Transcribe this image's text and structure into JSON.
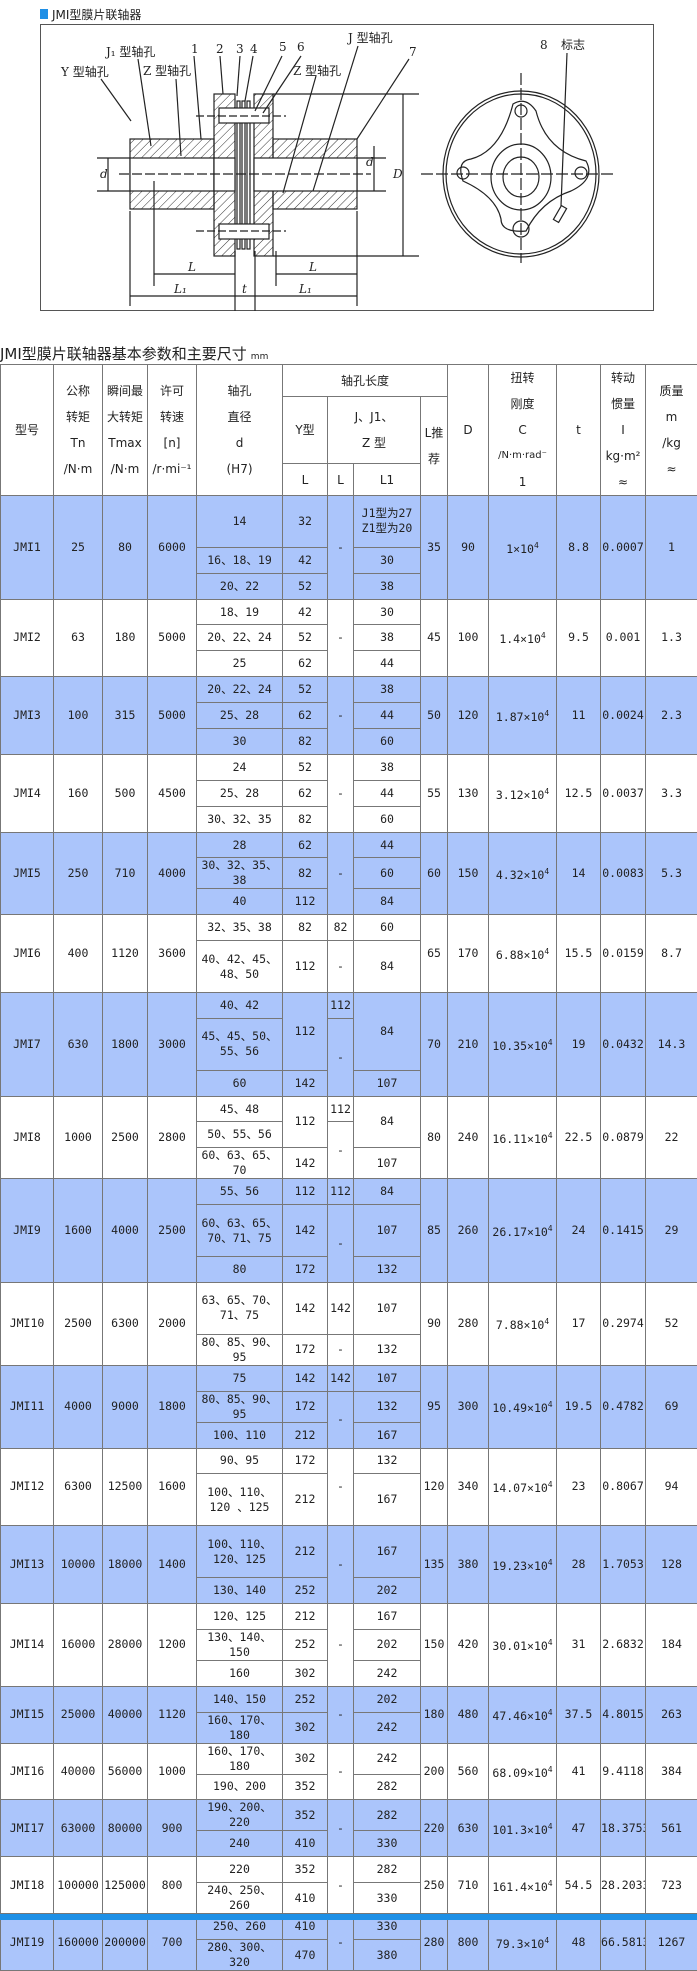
{
  "section_title": "JMI型膜片联轴器",
  "diagram": {
    "labels": {
      "y_bore": "Y 型轴孔",
      "j1_bore": "J₁ 型轴孔",
      "z_bore_left": "Z 型轴孔",
      "j_bore": "J 型轴孔",
      "z_bore_right": "Z 型轴孔",
      "n1": "1",
      "n2": "2",
      "n3": "3",
      "n4": "4",
      "n5": "5",
      "n6": "6",
      "n7": "7",
      "n8": "8",
      "mark": "标志",
      "dim_d_left": "d",
      "dim_d_right": "d",
      "dim_D": "D",
      "dim_L_left": "L",
      "dim_L_right": "L",
      "dim_L1_left": "L₁",
      "dim_L1_right": "L₁",
      "dim_t": "t"
    }
  },
  "table_title": "JMI型膜片联轴器基本参数和主要尺寸",
  "table_unit": "mm",
  "headers": {
    "model": "型号",
    "tn": [
      "公称",
      "转矩",
      "Tn",
      "/N·m"
    ],
    "tmax": [
      "瞬间最",
      "大转矩",
      "Tmax",
      "/N·m"
    ],
    "speed": [
      "许可",
      "转速",
      "[n]",
      "/r·mi⁻¹"
    ],
    "bore": [
      "轴孔",
      "直径",
      "d",
      "(H7)"
    ],
    "bore_length": "轴孔长度",
    "y_type": "Y型",
    "jz_type": [
      "J、J1、",
      "Z 型"
    ],
    "l_rec": [
      "L推",
      "荐"
    ],
    "y_L": "L",
    "jz_L": "L",
    "jz_L1": "L1",
    "D": "D",
    "stiffness": [
      "扭转",
      "刚度",
      "C",
      "/N·m·rad⁻",
      "1"
    ],
    "t": "t",
    "inertia": [
      "转动",
      "惯量",
      "I",
      "kg·m²",
      "≈"
    ],
    "mass": [
      "质量",
      "m",
      "/kg",
      "≈"
    ]
  },
  "rows": [
    {
      "model": "JMI1",
      "tn": "25",
      "tmax": "80",
      "speed": "6000",
      "l_rec": "35",
      "D": "90",
      "C": "1×10",
      "t": "8.8",
      "I": "0.0007",
      "m": "1",
      "d": [
        "14",
        "16、18、19",
        "20、22"
      ],
      "y": [
        "32",
        "42",
        "52"
      ],
      "jl": [
        "-"
      ],
      "l1": [
        "J1型为27 Z1型为20",
        "30",
        "38"
      ]
    },
    {
      "model": "JMI2",
      "tn": "63",
      "tmax": "180",
      "speed": "5000",
      "l_rec": "45",
      "D": "100",
      "C": "1.4×10",
      "t": "9.5",
      "I": "0.001",
      "m": "1.3",
      "d": [
        "18、19",
        "20、22、24",
        "25"
      ],
      "y": [
        "42",
        "52",
        "62"
      ],
      "jl": [
        "-"
      ],
      "l1": [
        "30",
        "38",
        "44"
      ]
    },
    {
      "model": "JMI3",
      "tn": "100",
      "tmax": "315",
      "speed": "5000",
      "l_rec": "50",
      "D": "120",
      "C": "1.87×10",
      "t": "11",
      "I": "0.0024",
      "m": "2.3",
      "d": [
        "20、22、24",
        "25、28",
        "30"
      ],
      "y": [
        "52",
        "62",
        "82"
      ],
      "jl": [
        "-"
      ],
      "l1": [
        "38",
        "44",
        "60"
      ]
    },
    {
      "model": "JMI4",
      "tn": "160",
      "tmax": "500",
      "speed": "4500",
      "l_rec": "55",
      "D": "130",
      "C": "3.12×10",
      "t": "12.5",
      "I": "0.0037",
      "m": "3.3",
      "d": [
        "24",
        "25、28",
        "30、32、35"
      ],
      "y": [
        "52",
        "62",
        "82"
      ],
      "jl": [
        "-"
      ],
      "l1": [
        "38",
        "44",
        "60"
      ]
    },
    {
      "model": "JMI5",
      "tn": "250",
      "tmax": "710",
      "speed": "4000",
      "l_rec": "60",
      "D": "150",
      "C": "4.32×10",
      "t": "14",
      "I": "0.0083",
      "m": "5.3",
      "d": [
        "28",
        "30、32、35、38",
        "40"
      ],
      "y": [
        "62",
        "82",
        "112"
      ],
      "jl": [
        "-"
      ],
      "l1": [
        "44",
        "60",
        "84"
      ]
    },
    {
      "model": "JMI6",
      "tn": "400",
      "tmax": "1120",
      "speed": "3600",
      "l_rec": "65",
      "D": "170",
      "C": "6.88×10",
      "t": "15.5",
      "I": "0.0159",
      "m": "8.7",
      "d": [
        "32、35、38",
        "40、42、45、48、50"
      ],
      "y": [
        "82",
        "112"
      ],
      "jl": [
        "82",
        "-"
      ],
      "l1": [
        "60",
        "84"
      ]
    },
    {
      "model": "JMI7",
      "tn": "630",
      "tmax": "1800",
      "speed": "3000",
      "l_rec": "70",
      "D": "210",
      "C": "10.35×10",
      "t": "19",
      "I": "0.0432",
      "m": "14.3",
      "d": [
        "40、42",
        "45、45、50、55、56",
        "60"
      ],
      "y": [
        "112",
        "142"
      ],
      "jl": [
        "112",
        "-"
      ],
      "l1": [
        "84",
        "107"
      ]
    },
    {
      "model": "JMI8",
      "tn": "1000",
      "tmax": "2500",
      "speed": "2800",
      "l_rec": "80",
      "D": "240",
      "C": "16.11×10",
      "t": "22.5",
      "I": "0.0879",
      "m": "22",
      "d": [
        "45、48",
        "50、55、56",
        "60、63、65、70"
      ],
      "y": [
        "112",
        "142"
      ],
      "jl": [
        "112",
        "-"
      ],
      "l1": [
        "84",
        "107"
      ]
    },
    {
      "model": "JMI9",
      "tn": "1600",
      "tmax": "4000",
      "speed": "2500",
      "l_rec": "85",
      "D": "260",
      "C": "26.17×10",
      "t": "24",
      "I": "0.1415",
      "m": "29",
      "d": [
        "55、56",
        "60、63、65、70、71、75",
        "80"
      ],
      "y": [
        "112",
        "142",
        "172"
      ],
      "jl": [
        "112",
        "-"
      ],
      "l1": [
        "84",
        "107",
        "132"
      ]
    },
    {
      "model": "JMI10",
      "tn": "2500",
      "tmax": "6300",
      "speed": "2000",
      "l_rec": "90",
      "D": "280",
      "C": "7.88×10",
      "t": "17",
      "I": "0.2974",
      "m": "52",
      "d": [
        "63、65、70、71、75",
        "80、85、90、95"
      ],
      "y": [
        "142",
        "172"
      ],
      "jl": [
        "142",
        "-"
      ],
      "l1": [
        "107",
        "132"
      ]
    },
    {
      "model": "JMI11",
      "tn": "4000",
      "tmax": "9000",
      "speed": "1800",
      "l_rec": "95",
      "D": "300",
      "C": "10.49×10",
      "t": "19.5",
      "I": "0.4782",
      "m": "69",
      "d": [
        "75",
        "80、85、90、95",
        "100、110"
      ],
      "y": [
        "142",
        "172",
        "212"
      ],
      "jl": [
        "142",
        "-"
      ],
      "l1": [
        "107",
        "132",
        "167"
      ]
    },
    {
      "model": "JMI12",
      "tn": "6300",
      "tmax": "12500",
      "speed": "1600",
      "l_rec": "120",
      "D": "340",
      "C": "14.07×10",
      "t": "23",
      "I": "0.8067",
      "m": "94",
      "d": [
        "90、95",
        "100、110、120 、125"
      ],
      "y": [
        "172",
        "212"
      ],
      "jl": [
        "-"
      ],
      "l1": [
        "132",
        "167"
      ]
    },
    {
      "model": "JMI13",
      "tn": "10000",
      "tmax": "18000",
      "speed": "1400",
      "l_rec": "135",
      "D": "380",
      "C": "19.23×10",
      "t": "28",
      "I": "1.7053",
      "m": "128",
      "d": [
        "100、110、120、125",
        "130、140"
      ],
      "y": [
        "212",
        "252"
      ],
      "jl": [
        "-"
      ],
      "l1": [
        "167",
        "202"
      ]
    },
    {
      "model": "JMI14",
      "tn": "16000",
      "tmax": "28000",
      "speed": "1200",
      "l_rec": "150",
      "D": "420",
      "C": "30.01×10",
      "t": "31",
      "I": "2.6832",
      "m": "184",
      "d": [
        "120、125",
        "130、140、150",
        "160"
      ],
      "y": [
        "212",
        "252",
        "302"
      ],
      "jl": [
        "-"
      ],
      "l1": [
        "167",
        "202",
        "242"
      ]
    },
    {
      "model": "JMI15",
      "tn": "25000",
      "tmax": "40000",
      "speed": "1120",
      "l_rec": "180",
      "D": "480",
      "C": "47.46×10",
      "t": "37.5",
      "I": "4.8015",
      "m": "263",
      "d": [
        "140、150",
        "160、170、180"
      ],
      "y": [
        "252",
        "302"
      ],
      "jl": [
        "-"
      ],
      "l1": [
        "202",
        "242"
      ]
    },
    {
      "model": "JMI16",
      "tn": "40000",
      "tmax": "56000",
      "speed": "1000",
      "l_rec": "200",
      "D": "560",
      "C": "68.09×10",
      "t": "41",
      "I": "9.4118",
      "m": "384",
      "d": [
        "160、170、180",
        "190、200"
      ],
      "y": [
        "302",
        "352"
      ],
      "jl": [
        "-"
      ],
      "l1": [
        "242",
        "282"
      ]
    },
    {
      "model": "JMI17",
      "tn": "63000",
      "tmax": "80000",
      "speed": "900",
      "l_rec": "220",
      "D": "630",
      "C": "101.3×10",
      "t": "47",
      "I": "18.3753",
      "m": "561",
      "d": [
        "190、200、220",
        "240"
      ],
      "y": [
        "352",
        "410"
      ],
      "jl": [
        "-"
      ],
      "l1": [
        "282",
        "330"
      ]
    },
    {
      "model": "JMI18",
      "tn": "100000",
      "tmax": "125000",
      "speed": "800",
      "l_rec": "250",
      "D": "710",
      "C": "161.4×10",
      "t": "54.5",
      "I": "28.2033",
      "m": "723",
      "d": [
        "220",
        "240、250、260"
      ],
      "y": [
        "352",
        "410"
      ],
      "jl": [
        "-"
      ],
      "l1": [
        "282",
        "330"
      ]
    },
    {
      "model": "JMI19",
      "tn": "160000",
      "tmax": "200000",
      "speed": "700",
      "l_rec": "280",
      "D": "800",
      "C": "79.3×10",
      "t": "48",
      "I": "66.5813",
      "m": "1267",
      "d": [
        "250、260",
        "280、300、320"
      ],
      "y": [
        "410",
        "470"
      ],
      "jl": [
        "-"
      ],
      "l1": [
        "330",
        "380"
      ]
    }
  ],
  "stiffness_exponent": "4",
  "colors": {
    "row_highlight": "#abc5fb",
    "accent": "#1e90e6",
    "border": "#777777"
  }
}
